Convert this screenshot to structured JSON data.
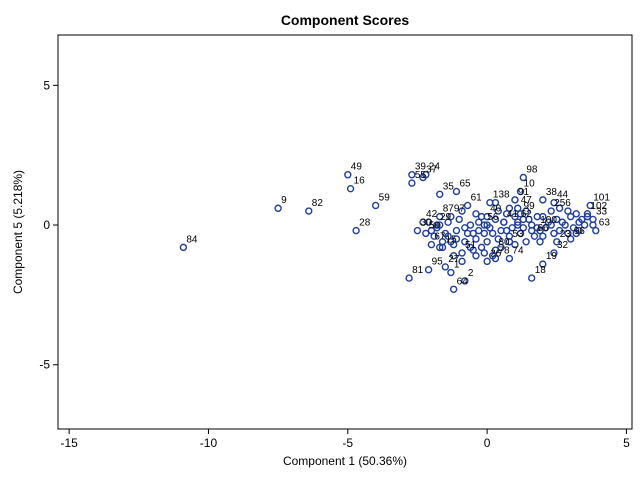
{
  "chart_data": {
    "type": "scatter",
    "title": "Component Scores",
    "xlabel": "Component 1 (50.36%)",
    "ylabel": "Component 5 (5.218%)",
    "xlim": [
      -15.4,
      5.2
    ],
    "ylim": [
      -7.3,
      6.8
    ],
    "xticks": [
      -15,
      -10,
      -5,
      0,
      5
    ],
    "yticks": [
      -5,
      0,
      5
    ],
    "grid": false,
    "legend": "none",
    "marker_color": "#1f3f99",
    "points": [
      {
        "label": "84",
        "x": -10.9,
        "y": -0.8
      },
      {
        "label": "9",
        "x": -7.5,
        "y": 0.6
      },
      {
        "label": "82",
        "x": -6.4,
        "y": 0.5
      },
      {
        "label": "49",
        "x": -5.0,
        "y": 1.8
      },
      {
        "label": "16",
        "x": -4.9,
        "y": 1.3
      },
      {
        "label": "28",
        "x": -4.7,
        "y": -0.2
      },
      {
        "label": "59",
        "x": -4.0,
        "y": 0.7
      },
      {
        "label": "55",
        "x": -2.7,
        "y": 1.5
      },
      {
        "label": "39",
        "x": -2.7,
        "y": 1.8
      },
      {
        "label": "24",
        "x": -2.2,
        "y": 1.8
      },
      {
        "label": "37",
        "x": -2.3,
        "y": 1.7
      },
      {
        "label": "35",
        "x": -1.7,
        "y": 1.1
      },
      {
        "label": "65",
        "x": -1.1,
        "y": 1.2
      },
      {
        "label": "61",
        "x": -0.7,
        "y": 0.7
      },
      {
        "label": "42",
        "x": -2.3,
        "y": 0.1
      },
      {
        "label": "87",
        "x": -1.7,
        "y": 0.3
      },
      {
        "label": "29",
        "x": -1.8,
        "y": 0.0
      },
      {
        "label": "30",
        "x": -2.5,
        "y": -0.2
      },
      {
        "label": "50",
        "x": -2.2,
        "y": -0.3
      },
      {
        "label": "67",
        "x": -2.0,
        "y": -0.7
      },
      {
        "label": "15",
        "x": -1.6,
        "y": -0.8
      },
      {
        "label": "51",
        "x": -0.9,
        "y": -1.0
      },
      {
        "label": "81",
        "x": -2.8,
        "y": -1.9
      },
      {
        "label": "95",
        "x": -2.1,
        "y": -1.6
      },
      {
        "label": "64",
        "x": -1.2,
        "y": -2.3
      },
      {
        "label": "1",
        "x": -1.3,
        "y": -1.7
      },
      {
        "label": "27",
        "x": -1.5,
        "y": -1.5
      },
      {
        "label": "2",
        "x": -0.8,
        "y": -2.0
      },
      {
        "label": "97",
        "x": -1.3,
        "y": 0.3
      },
      {
        "label": "98",
        "x": 1.3,
        "y": 1.7
      },
      {
        "label": "10",
        "x": 1.2,
        "y": 1.2
      },
      {
        "label": "138",
        "x": 0.1,
        "y": 0.8
      },
      {
        "label": "91",
        "x": 1.0,
        "y": 0.9
      },
      {
        "label": "47",
        "x": 1.1,
        "y": 0.6
      },
      {
        "label": "38",
        "x": 2.0,
        "y": 0.9
      },
      {
        "label": "44",
        "x": 2.4,
        "y": 0.8
      },
      {
        "label": "101",
        "x": 3.7,
        "y": 0.7
      },
      {
        "label": "102",
        "x": 3.6,
        "y": 0.4
      },
      {
        "label": "256",
        "x": 2.3,
        "y": 0.5
      },
      {
        "label": "99",
        "x": 1.2,
        "y": 0.4
      },
      {
        "label": "41",
        "x": 0.6,
        "y": 0.1
      },
      {
        "label": "62",
        "x": 1.1,
        "y": 0.1
      },
      {
        "label": "33",
        "x": 3.8,
        "y": 0.2
      },
      {
        "label": "63",
        "x": 3.9,
        "y": -0.2
      },
      {
        "label": "96",
        "x": 3.0,
        "y": -0.5
      },
      {
        "label": "23",
        "x": 2.5,
        "y": -0.6
      },
      {
        "label": "32",
        "x": 2.4,
        "y": -1.0
      },
      {
        "label": "19",
        "x": 2.0,
        "y": -1.4
      },
      {
        "label": "18",
        "x": 1.6,
        "y": -1.9
      },
      {
        "label": "74",
        "x": 0.8,
        "y": -1.2
      },
      {
        "label": "78",
        "x": 0.3,
        "y": -1.2
      },
      {
        "label": "26",
        "x": 0.0,
        "y": -1.3
      },
      {
        "label": "53",
        "x": 0.8,
        "y": -0.6
      },
      {
        "label": "40",
        "x": 0.0,
        "y": 0.3
      },
      {
        "label": "56",
        "x": -0.1,
        "y": 0.0
      },
      {
        "label": "100",
        "x": 1.8,
        "y": -0.1
      },
      {
        "label": "80",
        "x": 0.3,
        "y": -0.9
      },
      {
        "label": "66",
        "x": 1.7,
        "y": -0.4
      }
    ],
    "cluster_points": [
      [
        -1.4,
        0.1
      ],
      [
        -1.0,
        0.2
      ],
      [
        -0.6,
        0.0
      ],
      [
        -0.2,
        0.3
      ],
      [
        0.3,
        0.2
      ],
      [
        0.7,
        0.4
      ],
      [
        1.0,
        0.3
      ],
      [
        1.5,
        0.2
      ],
      [
        2.0,
        0.3
      ],
      [
        2.5,
        0.2
      ],
      [
        3.0,
        0.3
      ],
      [
        3.3,
        0.1
      ],
      [
        3.5,
        0.0
      ],
      [
        2.8,
        0.0
      ],
      [
        2.2,
        0.1
      ],
      [
        1.8,
        0.3
      ],
      [
        1.3,
        -0.1
      ],
      [
        0.9,
        -0.1
      ],
      [
        0.5,
        -0.2
      ],
      [
        0.1,
        -0.1
      ],
      [
        -0.3,
        -0.2
      ],
      [
        -0.7,
        -0.3
      ],
      [
        -1.1,
        -0.2
      ],
      [
        -1.5,
        -0.3
      ],
      [
        -1.9,
        -0.4
      ],
      [
        -1.6,
        -0.6
      ],
      [
        -1.2,
        -0.7
      ],
      [
        -0.8,
        -0.6
      ],
      [
        -0.4,
        -0.5
      ],
      [
        0.0,
        -0.6
      ],
      [
        0.4,
        -0.5
      ],
      [
        0.8,
        -0.4
      ],
      [
        1.2,
        -0.3
      ],
      [
        1.6,
        -0.2
      ],
      [
        2.1,
        -0.1
      ],
      [
        2.6,
        -0.2
      ],
      [
        3.1,
        -0.1
      ],
      [
        3.4,
        0.2
      ],
      [
        2.9,
        0.5
      ],
      [
        2.6,
        0.6
      ],
      [
        1.4,
        0.5
      ],
      [
        0.4,
        0.5
      ],
      [
        -0.4,
        0.4
      ],
      [
        -0.9,
        0.5
      ],
      [
        -1.2,
        -1.1
      ],
      [
        -0.9,
        -1.3
      ],
      [
        -0.5,
        -0.9
      ],
      [
        -0.1,
        -1.0
      ],
      [
        0.5,
        -0.8
      ],
      [
        1.0,
        -0.7
      ],
      [
        1.4,
        -0.6
      ],
      [
        1.9,
        -0.6
      ],
      [
        -2.0,
        -0.2
      ],
      [
        -1.7,
        0.0
      ],
      [
        -1.4,
        -0.4
      ],
      [
        -1.1,
        -0.5
      ],
      [
        -0.6,
        -0.8
      ],
      [
        -0.2,
        -0.8
      ],
      [
        0.2,
        -0.3
      ],
      [
        0.6,
        0.1
      ],
      [
        1.1,
        0.0
      ],
      [
        1.6,
        0.0
      ],
      [
        2.3,
        0.0
      ],
      [
        2.7,
        0.1
      ],
      [
        3.2,
        -0.3
      ],
      [
        3.6,
        0.3
      ],
      [
        3.8,
        0.0
      ],
      [
        3.2,
        0.4
      ],
      [
        2.4,
        -0.3
      ],
      [
        1.9,
        -0.2
      ],
      [
        0.8,
        0.6
      ],
      [
        0.3,
        0.8
      ],
      [
        -0.3,
        0.1
      ],
      [
        -0.8,
        -0.1
      ],
      [
        -1.3,
        -0.6
      ],
      [
        -1.7,
        -0.8
      ],
      [
        -0.5,
        -0.3
      ],
      [
        0.0,
        0.0
      ],
      [
        0.7,
        -0.2
      ],
      [
        1.3,
        0.2
      ],
      [
        2.0,
        -0.4
      ],
      [
        2.9,
        -0.3
      ],
      [
        3.3,
        -0.2
      ],
      [
        -2.1,
        0.1
      ],
      [
        -1.8,
        -0.1
      ],
      [
        -0.1,
        -0.3
      ],
      [
        -0.4,
        -1.1
      ],
      [
        0.2,
        -1.1
      ]
    ]
  }
}
